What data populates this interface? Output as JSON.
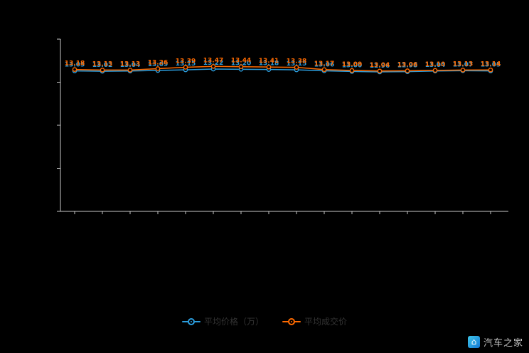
{
  "page": {
    "background": "#000000"
  },
  "chart_data": {
    "type": "line",
    "x": [
      1,
      2,
      3,
      4,
      5,
      6,
      7,
      8,
      9,
      10,
      11,
      12,
      13,
      14,
      15,
      16
    ],
    "series": [
      {
        "name": "平均价格（万）",
        "color": "#2b9ddd",
        "values": [
          13.05,
          13.02,
          13.04,
          13.09,
          13.15,
          13.22,
          13.2,
          13.18,
          13.15,
          13.06,
          13.0,
          12.96,
          12.98,
          13.04,
          13.07,
          13.05
        ]
      },
      {
        "name": "平均成交价",
        "color": "#ff6a00",
        "values": [
          13.18,
          13.13,
          13.13,
          13.26,
          13.39,
          13.47,
          13.44,
          13.41,
          13.38,
          13.17,
          13.09,
          13.04,
          13.06,
          13.1,
          13.13,
          13.14
        ]
      }
    ],
    "ylim": [
      0,
      16
    ],
    "y_ticks": 5,
    "grid": false,
    "legend_position": "bottom",
    "axis_color": "#c9c9c9",
    "title": "",
    "xlabel": "",
    "ylabel": ""
  },
  "legend": {
    "items": [
      {
        "label": "平均价格（万）",
        "color": "#2b9ddd"
      },
      {
        "label": "平均成交价",
        "color": "#ff6a00"
      }
    ]
  },
  "watermark": {
    "text": "汽车之家",
    "icon": "autohome-logo",
    "icon_glyph": "⌂"
  }
}
